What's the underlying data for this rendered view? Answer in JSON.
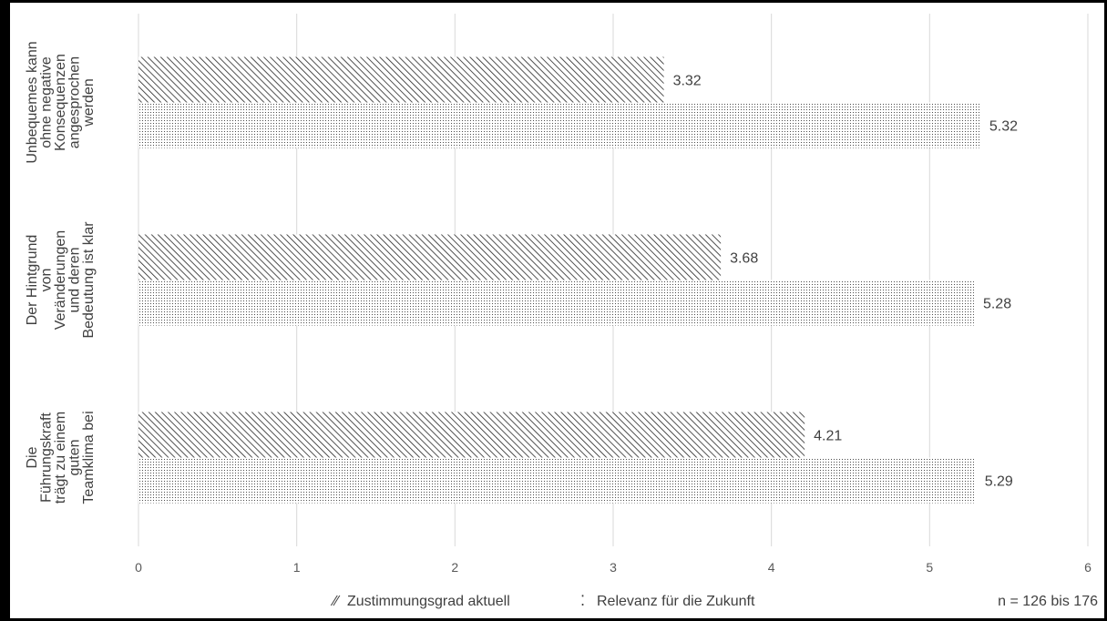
{
  "chart_data": {
    "type": "bar",
    "orientation": "horizontal",
    "categories": [
      [
        "Unbequemes kann",
        "ohne negative",
        "Konsequenzen",
        "angesprochen",
        "werden"
      ],
      [
        "Der Hintgrund",
        "von",
        "Veränderungen",
        "und deren",
        "Bedeutung ist klar"
      ],
      [
        "Die",
        "Führungskraft",
        "trägt zu einem",
        "guten",
        "Teamklima bei"
      ]
    ],
    "series": [
      {
        "name": "Zustimmungsgrad aktuell",
        "values": [
          3.32,
          3.68,
          4.21
        ],
        "pattern": "hatch"
      },
      {
        "name": "Relevanz für die Zukunft",
        "values": [
          5.32,
          5.28,
          5.29
        ],
        "pattern": "dots"
      }
    ],
    "data_labels": [
      [
        "3.32",
        "3.68",
        "4.21"
      ],
      [
        "5.32",
        "5.28",
        "5.29"
      ]
    ],
    "xlim": [
      0,
      6
    ],
    "xticks": [
      "0",
      "1",
      "2",
      "3",
      "4",
      "5",
      "6"
    ],
    "grid": "vertical",
    "legend_position": "bottom",
    "note": "n = 126 bis 176",
    "colors": {
      "axis_text": "#595959",
      "label_text": "#404040",
      "grid": "#d9d9d9",
      "bar_stroke": "#262626"
    }
  }
}
